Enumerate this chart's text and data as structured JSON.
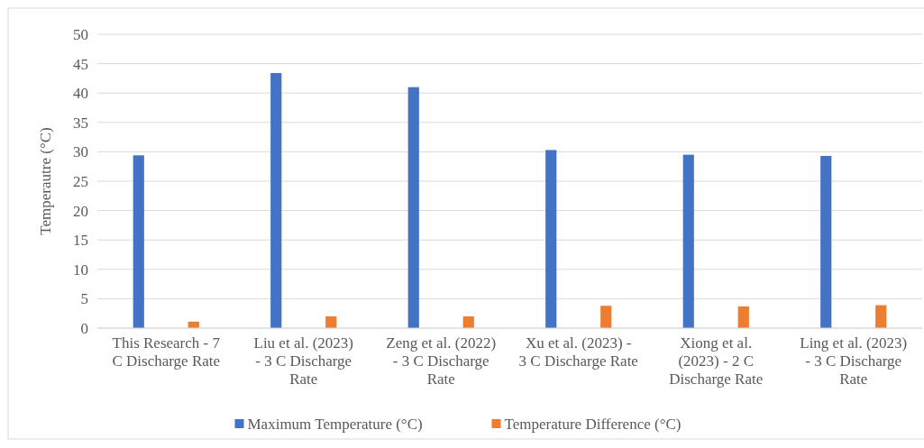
{
  "chart_data": {
    "type": "bar",
    "ylabel": "Temperautre (°C)",
    "categories": [
      "This Research - 7 C Discharge Rate",
      "Liu et al. (2023) - 3 C Discharge Rate",
      "Zeng et al. (2022) - 3 C Discharge Rate",
      "Xu et al. (2023) - 3 C Discharge Rate",
      "Xiong et al. (2023) - 2 C Discharge Rate",
      "Ling et al. (2023) - 3 C Discharge Rate"
    ],
    "series": [
      {
        "name": "Maximum Temperature (°C)",
        "color": "#4472c4",
        "values": [
          29.4,
          43.4,
          41.0,
          30.3,
          29.5,
          29.3
        ]
      },
      {
        "name": "Temperature Difference (°C)",
        "color": "#ed7d31",
        "values": [
          1.1,
          2.0,
          2.0,
          3.8,
          3.7,
          3.9
        ]
      }
    ],
    "ylim": [
      0,
      50
    ],
    "yticks": [
      0,
      5,
      10,
      15,
      20,
      25,
      30,
      35,
      40,
      45,
      50
    ],
    "grid": "y",
    "legend": "bottom"
  }
}
